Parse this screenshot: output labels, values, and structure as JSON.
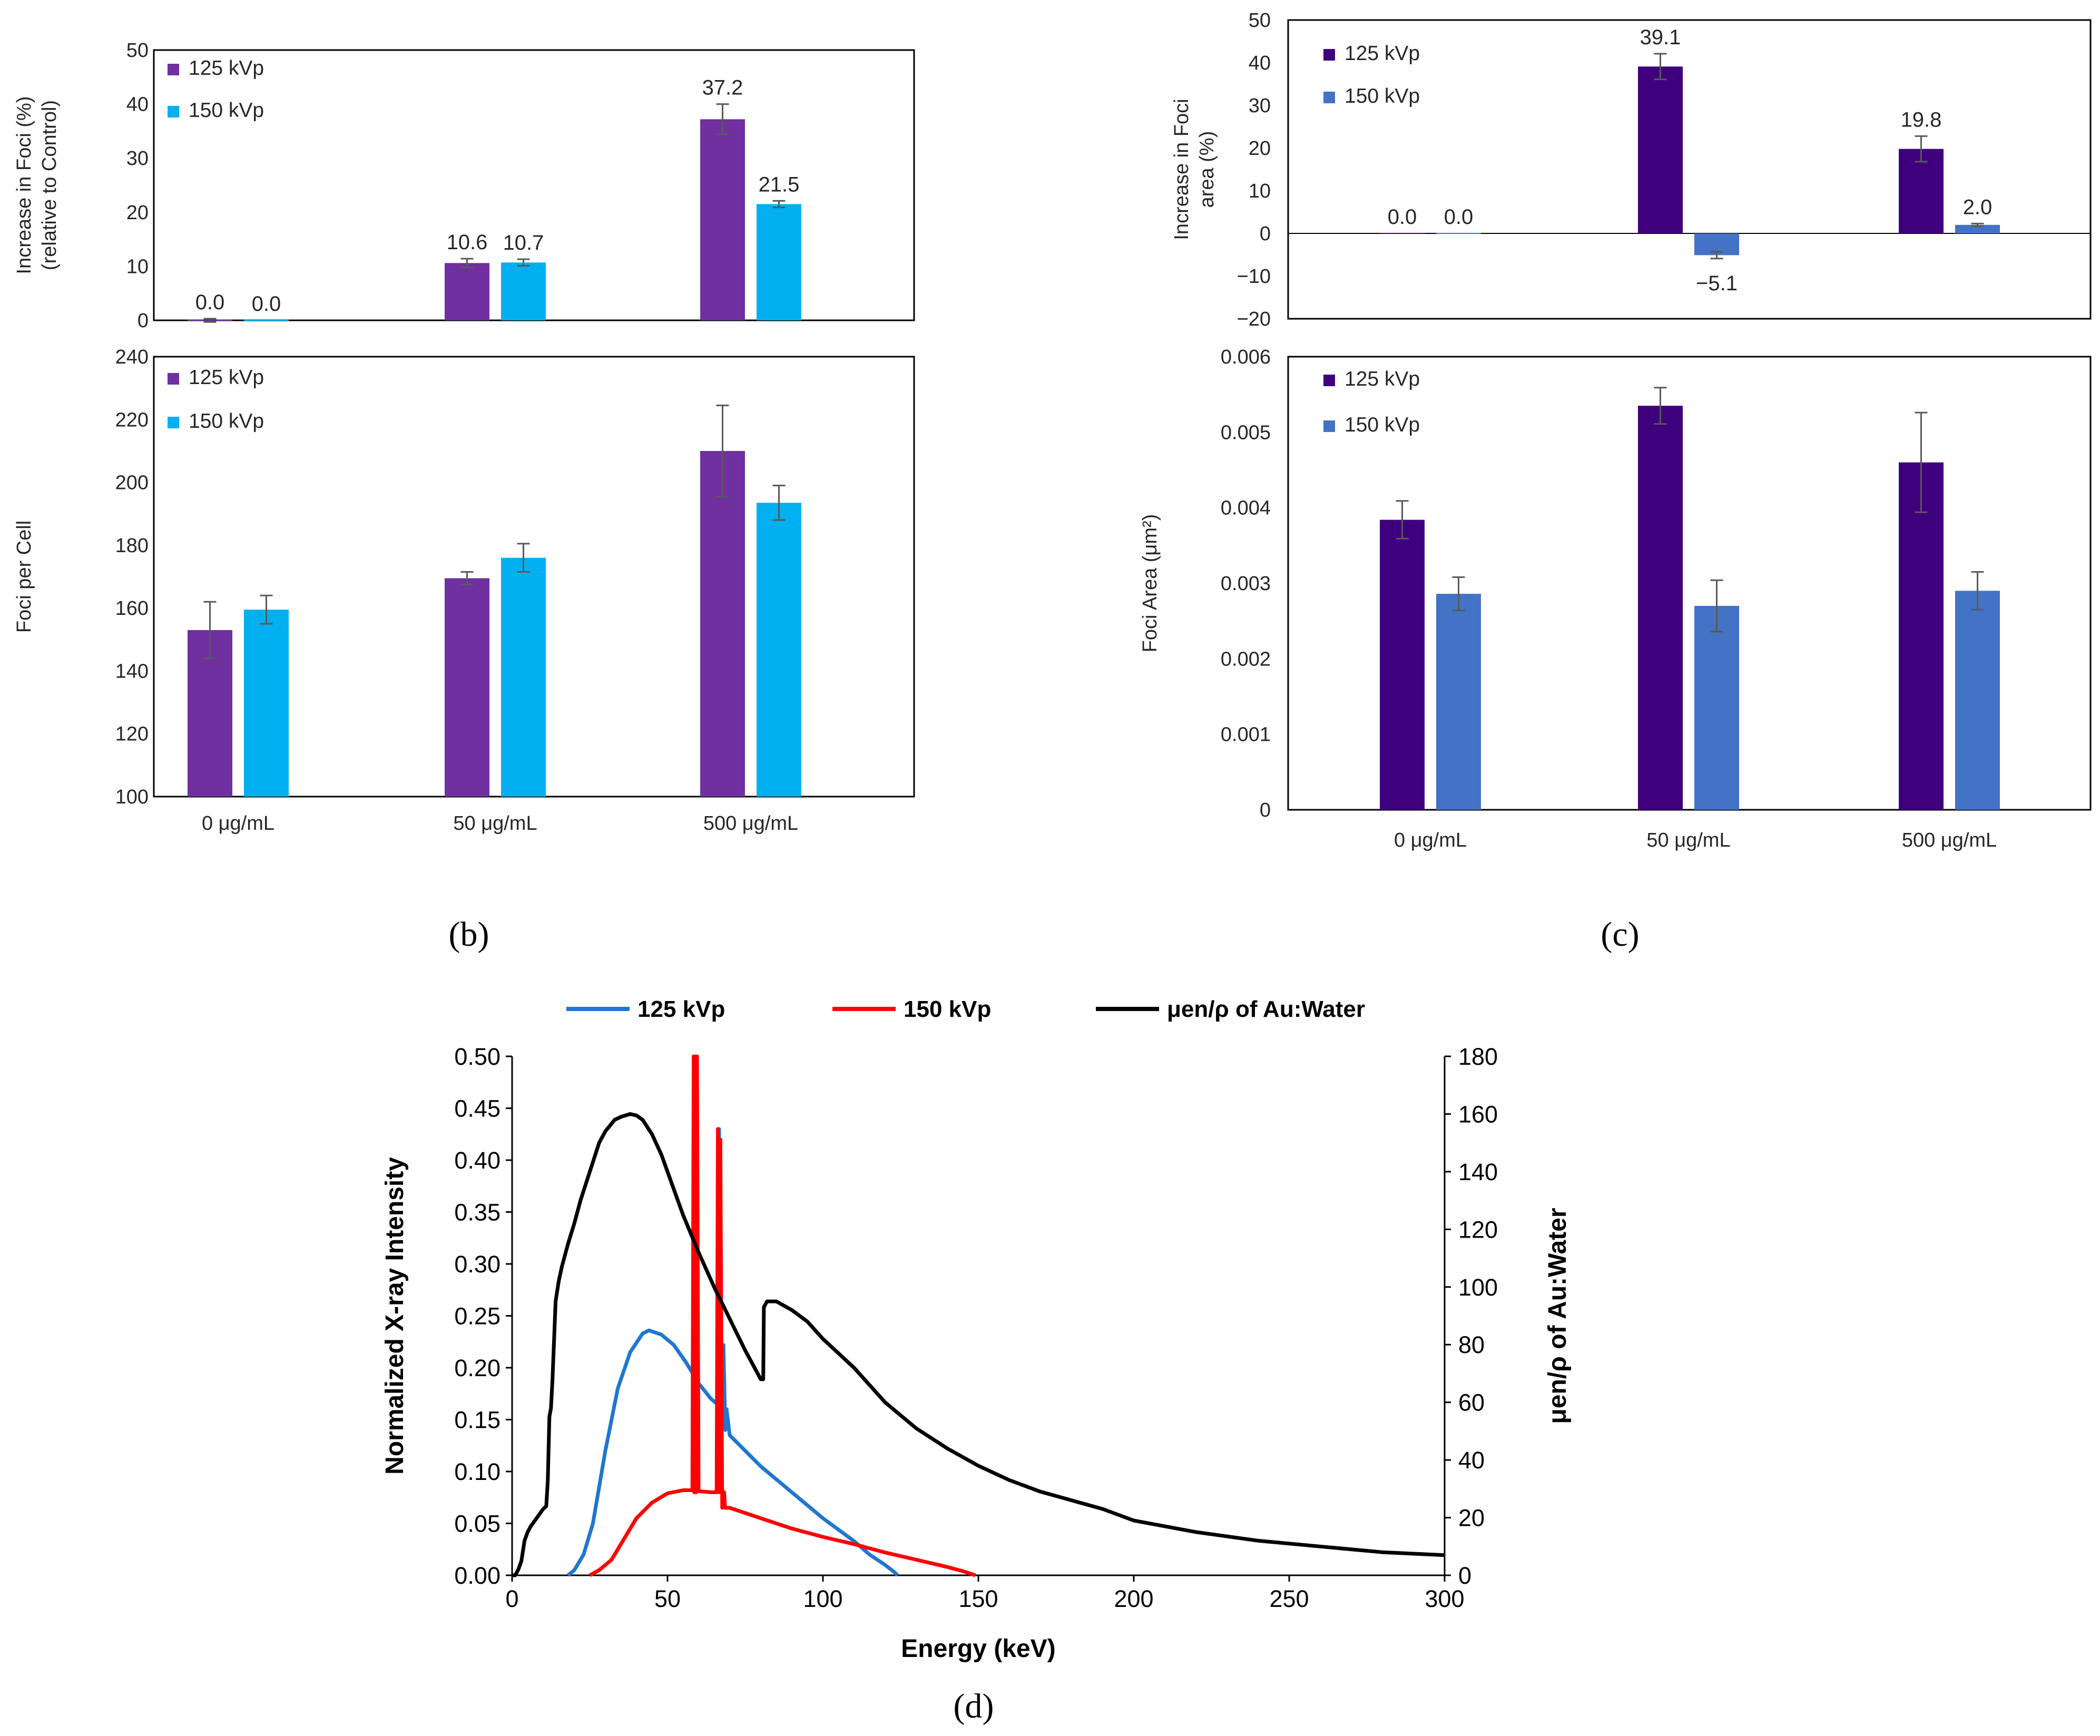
{
  "chart_data": [
    {
      "id": "b-top",
      "type": "bar",
      "title": "",
      "ylabel": "Increase in Foci (%) (relative to Control)",
      "ylabel_lines": [
        "Increase in Foci (%)",
        "(relative to Control)"
      ],
      "xlabel": "",
      "categories": [
        "0 μg/mL",
        "50 μg/mL",
        "500 μg/mL"
      ],
      "ylim": [
        0,
        50
      ],
      "yticks": [
        0,
        10,
        20,
        30,
        40,
        50
      ],
      "show_category_labels": false,
      "series": [
        {
          "name": "125 kVp",
          "color": "#7030a0",
          "values": [
            0.0,
            10.6,
            37.2
          ],
          "errors": [
            0.3,
            0.8,
            2.8
          ],
          "labels": [
            "0.0",
            "10.6",
            "37.2"
          ]
        },
        {
          "name": "150 kVp",
          "color": "#00b0f0",
          "values": [
            0.0,
            10.7,
            21.5
          ],
          "errors": [
            0.0,
            0.6,
            0.6
          ],
          "labels": [
            "0.0",
            "10.7",
            "21.5"
          ]
        }
      ],
      "legend": "top-left"
    },
    {
      "id": "b-bottom",
      "type": "bar",
      "title": "",
      "ylabel": "Foci per Cell",
      "ylabel_lines": [
        "Foci per Cell"
      ],
      "xlabel": "",
      "categories": [
        "0 μg/mL",
        "50 μg/mL",
        "500 μg/mL"
      ],
      "ylim": [
        100,
        240
      ],
      "yticks": [
        100,
        120,
        140,
        160,
        180,
        200,
        220,
        240
      ],
      "show_category_labels": true,
      "series": [
        {
          "name": "125 kVp",
          "color": "#7030a0",
          "values": [
            153,
            169.5,
            210
          ],
          "errors": [
            9,
            2,
            14.5
          ]
        },
        {
          "name": "150 kVp",
          "color": "#00b0f0",
          "values": [
            159.5,
            176,
            193.5
          ],
          "errors": [
            4.5,
            4.5,
            5.5
          ]
        }
      ],
      "legend": "top-left"
    },
    {
      "id": "c-top",
      "type": "bar",
      "title": "",
      "ylabel": "Increase in Foci area (%)",
      "ylabel_lines": [
        "Increase in Foci",
        "area (%)"
      ],
      "xlabel": "",
      "categories": [
        "0 μg/mL",
        "50 μg/mL",
        "500 μg/mL"
      ],
      "ylim": [
        -20,
        50
      ],
      "yticks": [
        -20,
        -10,
        0,
        10,
        20,
        30,
        40,
        50
      ],
      "ytick_labels": [
        "−20",
        "−10",
        "0",
        "10",
        "20",
        "30",
        "40",
        "50"
      ],
      "show_category_labels": false,
      "series": [
        {
          "name": "125 kVp",
          "color": "#3f007d",
          "values": [
            0.0,
            39.1,
            19.8
          ],
          "errors": [
            0,
            3.0,
            3.0
          ],
          "labels": [
            "0.0",
            "39.1",
            "19.8"
          ]
        },
        {
          "name": "150 kVp",
          "color": "#4472c4",
          "values": [
            0.0,
            -5.1,
            2.0
          ],
          "errors": [
            0,
            0.8,
            0.3
          ],
          "labels": [
            "0.0",
            "−5.1",
            "2.0"
          ]
        }
      ],
      "legend": "top-left"
    },
    {
      "id": "c-bottom",
      "type": "bar",
      "title": "",
      "ylabel": "Foci Area (μm²)",
      "ylabel_lines": [
        "Foci Area (μm²)"
      ],
      "xlabel": "",
      "categories": [
        "0 μg/mL",
        "50 μg/mL",
        "500 μg/mL"
      ],
      "ylim": [
        0,
        0.006
      ],
      "yticks": [
        0,
        0.001,
        0.002,
        0.003,
        0.004,
        0.005,
        0.006
      ],
      "ytick_labels": [
        "0",
        "0.001",
        "0.002",
        "0.003",
        "0.004",
        "0.005",
        "0.006"
      ],
      "show_category_labels": true,
      "series": [
        {
          "name": "125 kVp",
          "color": "#3f007d",
          "values": [
            0.00384,
            0.00535,
            0.0046
          ],
          "errors": [
            0.00025,
            0.00024,
            0.00066
          ]
        },
        {
          "name": "150 kVp",
          "color": "#4472c4",
          "values": [
            0.00286,
            0.0027,
            0.0029
          ],
          "errors": [
            0.00022,
            0.00034,
            0.00025
          ]
        }
      ],
      "legend": "top-left"
    },
    {
      "id": "d",
      "type": "line",
      "title": "",
      "xlabel": "Energy (keV)",
      "ylabel": "Normalized X-ray Intensity",
      "y2label": "μen/ρ of Au:Water",
      "xlim": [
        0,
        300
      ],
      "xticks": [
        0,
        50,
        100,
        150,
        200,
        250,
        300
      ],
      "ylim": [
        0,
        0.5
      ],
      "yticks": [
        "0.00",
        "0.05",
        "0.10",
        "0.15",
        "0.20",
        "0.25",
        "0.30",
        "0.35",
        "0.40",
        "0.45",
        "0.50"
      ],
      "y2lim": [
        0,
        180
      ],
      "y2ticks": [
        0,
        20,
        40,
        60,
        80,
        100,
        120,
        140,
        160,
        180
      ],
      "legend": "top",
      "series": [
        {
          "name": "125 kVp",
          "color": "#1f77d0",
          "axis": "left",
          "x": [
            18,
            20,
            23,
            26,
            30,
            34,
            38,
            42,
            44,
            48,
            52,
            56,
            60,
            64,
            66,
            66.6,
            67,
            67.6,
            68,
            68.6,
            69,
            70,
            75,
            80,
            90,
            100,
            110,
            115,
            120,
            123,
            124
          ],
          "y": [
            0,
            0.005,
            0.02,
            0.05,
            0.12,
            0.18,
            0.215,
            0.233,
            0.236,
            0.232,
            0.222,
            0.205,
            0.185,
            0.17,
            0.165,
            0.43,
            0.165,
            0.165,
            0.222,
            0.14,
            0.16,
            0.135,
            0.12,
            0.105,
            0.08,
            0.055,
            0.033,
            0.02,
            0.01,
            0.003,
            0
          ]
        },
        {
          "name": "150 kVp",
          "color": "#ff0000",
          "axis": "left",
          "x": [
            25,
            28,
            32,
            36,
            40,
            45,
            50,
            55,
            58,
            58.4,
            58.6,
            58.9,
            59.2,
            59.5,
            60,
            64,
            65.8,
            66.2,
            66.6,
            67,
            67.6,
            68.2,
            68.5,
            69,
            70,
            80,
            90,
            100,
            110,
            120,
            130,
            140,
            145,
            148,
            149
          ],
          "y": [
            0,
            0.005,
            0.015,
            0.035,
            0.055,
            0.07,
            0.079,
            0.082,
            0.082,
            0.5,
            0.08,
            0.5,
            0.08,
            0.5,
            0.081,
            0.08,
            0.08,
            0.43,
            0.08,
            0.42,
            0.065,
            0.08,
            0.065,
            0.065,
            0.065,
            0.055,
            0.045,
            0.037,
            0.03,
            0.022,
            0.015,
            0.008,
            0.004,
            0.001,
            0
          ]
        },
        {
          "name": "μen/ρ of Au:Water",
          "color": "#000000",
          "axis": "right",
          "x": [
            0,
            1,
            2,
            3,
            4,
            5,
            6,
            8,
            10,
            11,
            11.5,
            12,
            12.5,
            13,
            14,
            15,
            16,
            18,
            20,
            22,
            25,
            28,
            30,
            33,
            35,
            38,
            40,
            42,
            45,
            48,
            50,
            55,
            60,
            65,
            70,
            75,
            80,
            80.8,
            81,
            82,
            85,
            90,
            95,
            100,
            110,
            120,
            130,
            140,
            150,
            160,
            170,
            180,
            190,
            200,
            220,
            240,
            260,
            280,
            300
          ],
          "y": [
            0,
            0,
            2,
            5,
            12,
            15,
            17,
            20,
            23,
            24,
            33,
            55,
            58,
            68,
            95,
            102,
            107,
            115,
            122,
            130,
            140,
            150,
            154,
            158,
            159,
            160,
            159.5,
            158,
            153,
            146,
            140,
            125,
            112,
            100,
            89,
            78,
            68,
            68,
            93,
            95,
            95,
            92,
            88,
            82,
            72,
            60,
            51,
            44,
            38,
            33,
            29,
            26,
            23,
            19,
            15,
            12,
            10,
            8,
            7
          ]
        }
      ]
    }
  ],
  "panel_labels": {
    "b": "(b)",
    "c": "(c)",
    "d": "(d)"
  }
}
